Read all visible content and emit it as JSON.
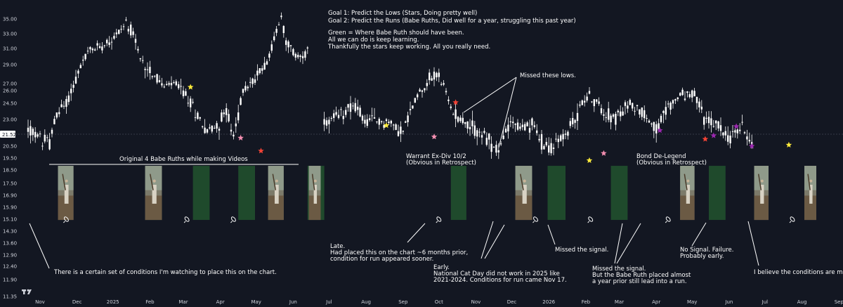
{
  "chart_data": {
    "type": "candlestick",
    "current_price": "21.52",
    "ylim": [
      11.3,
      36.2
    ],
    "y_ticks": [
      "35.00",
      "33.00",
      "31.00",
      "29.00",
      "27.00",
      "26.00",
      "24.50",
      "23.00",
      "21.52",
      "20.50",
      "19.50",
      "18.50",
      "17.50",
      "16.90",
      "15.90",
      "15.10",
      "14.30",
      "13.60",
      "12.90",
      "12.40",
      "11.90",
      "11.35"
    ],
    "y_tick_values": [
      35,
      33,
      31,
      29,
      27,
      26,
      24.5,
      23,
      21.52,
      20.5,
      19.5,
      18.5,
      17.5,
      16.9,
      15.9,
      15.1,
      14.3,
      13.6,
      12.9,
      12.4,
      11.9,
      11.35
    ],
    "x_ticks": [
      "Nov",
      "Dec",
      "2025",
      "Feb",
      "Mar",
      "Apr",
      "May",
      "Jun",
      "Jul",
      "Aug",
      "Sep",
      "Oct",
      "Nov",
      "Dec",
      "2026",
      "Feb",
      "Mar",
      "Apr",
      "May",
      "Jun",
      "Jul",
      "Aug",
      "Sep"
    ],
    "x_tick_day": [
      0,
      31,
      61,
      92,
      120,
      151,
      181,
      212,
      242,
      273,
      304,
      334,
      365,
      395,
      426,
      457,
      485,
      516,
      546,
      577,
      607,
      638,
      669
    ],
    "gap_days": [
      225,
      238
    ],
    "price_path": [
      [
        -10,
        22.0
      ],
      [
        2,
        21.0
      ],
      [
        8,
        20.8
      ],
      [
        14,
        23.5
      ],
      [
        22,
        24.5
      ],
      [
        30,
        27.5
      ],
      [
        40,
        30.5
      ],
      [
        52,
        31.5
      ],
      [
        62,
        32.5
      ],
      [
        72,
        34.5
      ],
      [
        78,
        33.0
      ],
      [
        84,
        29.5
      ],
      [
        92,
        28.5
      ],
      [
        104,
        26.5
      ],
      [
        114,
        27.0
      ],
      [
        124,
        25.0
      ],
      [
        134,
        23.0
      ],
      [
        140,
        21.8
      ],
      [
        150,
        22.5
      ],
      [
        156,
        24.0
      ],
      [
        162,
        21.0
      ],
      [
        170,
        26.0
      ],
      [
        180,
        27.5
      ],
      [
        192,
        30.0
      ],
      [
        198,
        33.5
      ],
      [
        202,
        35.2
      ],
      [
        206,
        32.0
      ],
      [
        214,
        30.0
      ],
      [
        224,
        30.5
      ],
      [
        238,
        22.5
      ],
      [
        250,
        23.2
      ],
      [
        262,
        24.5
      ],
      [
        272,
        22.8
      ],
      [
        290,
        22.8
      ],
      [
        304,
        21.8
      ],
      [
        316,
        25.5
      ],
      [
        326,
        27.5
      ],
      [
        334,
        28.0
      ],
      [
        344,
        24.0
      ],
      [
        358,
        22.5
      ],
      [
        370,
        21.5
      ],
      [
        384,
        20.0
      ],
      [
        394,
        23.0
      ],
      [
        402,
        22.0
      ],
      [
        412,
        22.5
      ],
      [
        422,
        20.5
      ],
      [
        430,
        20.5
      ],
      [
        440,
        21.5
      ],
      [
        448,
        23.0
      ],
      [
        458,
        25.5
      ],
      [
        470,
        24.0
      ],
      [
        482,
        23.0
      ],
      [
        494,
        24.5
      ],
      [
        506,
        23.5
      ],
      [
        516,
        22.0
      ],
      [
        528,
        24.5
      ],
      [
        538,
        25.5
      ],
      [
        548,
        25.5
      ],
      [
        556,
        23.0
      ],
      [
        566,
        22.5
      ],
      [
        578,
        21.2
      ],
      [
        588,
        22.3
      ],
      [
        596,
        20.8
      ]
    ],
    "star_days": [
      {
        "day": 126,
        "price": 26.5,
        "color": "#ffeb3b"
      },
      {
        "day": 168,
        "price": 21.2,
        "color": "#f48fb1"
      },
      {
        "day": 185,
        "price": 20.1,
        "color": "#f44336"
      },
      {
        "day": 290,
        "price": 22.4,
        "color": "#ffeb3b"
      },
      {
        "day": 330,
        "price": 21.3,
        "color": "#f48fb1"
      },
      {
        "day": 348,
        "price": 24.6,
        "color": "#f44336"
      },
      {
        "day": 460,
        "price": 19.3,
        "color": "#ffeb3b"
      },
      {
        "day": 472,
        "price": 19.9,
        "color": "#f48fb1"
      },
      {
        "day": 519,
        "price": 21.9,
        "color": "#9c27b0"
      },
      {
        "day": 557,
        "price": 21.1,
        "color": "#f44336"
      },
      {
        "day": 564,
        "price": 21.4,
        "color": "#9c27b0"
      },
      {
        "day": 583,
        "price": 22.3,
        "color": "#9c27b0"
      },
      {
        "day": 596,
        "price": 20.5,
        "color": "#9c27b0"
      },
      {
        "day": 627,
        "price": 20.6,
        "color": "#ffeb3b"
      }
    ],
    "green_zone_days": [
      [
        88,
        102
      ],
      [
        128,
        142
      ],
      [
        166,
        180
      ],
      [
        224,
        238
      ],
      [
        344,
        357
      ],
      [
        425,
        440
      ],
      [
        478,
        492
      ],
      [
        560,
        574
      ]
    ],
    "photo_days": [
      [
        15,
        28
      ],
      [
        88,
        102
      ],
      [
        191,
        204
      ],
      [
        225,
        235
      ],
      [
        398,
        412
      ],
      [
        536,
        548
      ],
      [
        598,
        610
      ],
      [
        640,
        650
      ]
    ],
    "rocket_days": [
      22,
      123,
      162,
      334,
      415,
      461,
      526,
      630
    ],
    "annotations": [
      {
        "text": "Goal 1: Predict the Lows (Stars, Doing pretty well)"
      },
      {
        "text": "Goal 2: Predict the Runs (Babe Ruths, Did well for a year, struggling this past year)"
      },
      {
        "text": "Green = Where Babe Ruth should have been."
      },
      {
        "text": "All we can do is keep learning."
      },
      {
        "text": "Thankfully the stars keep working. All you really need."
      },
      {
        "text": "Missed these lows."
      },
      {
        "text": "Original 4 Babe Ruths while making Videos"
      },
      {
        "text": "Warrant Ex-Div 10/2"
      },
      {
        "text": "(Obvious in Retrospect)"
      },
      {
        "text": "Bond De-Legend"
      },
      {
        "text": "(Obvious in Retrospect)"
      },
      {
        "text": "Late."
      },
      {
        "text": "Had placed this on the chart ~6 months prior,"
      },
      {
        "text": "condition for run appeared sooner."
      },
      {
        "text": "Early."
      },
      {
        "text": "National Cat Day did not work in 2025 like"
      },
      {
        "text": "2021-2024. Conditions for run came Nov 17."
      },
      {
        "text": "Missed the signal."
      },
      {
        "text": "Missed the signal."
      },
      {
        "text": "But the Babe Ruth placed almost"
      },
      {
        "text": "a year prior still lead into a run."
      },
      {
        "text": "No Signal. Failure."
      },
      {
        "text": "Probably early."
      },
      {
        "text": "I believe the conditions are met."
      },
      {
        "text": "There is a certain set of conditions I'm watching to place this on the chart."
      }
    ],
    "colors": {
      "background": "#131722",
      "candle": "#ffffff",
      "green_zone": "#1f4a2c",
      "price_line": "#363a45"
    }
  }
}
